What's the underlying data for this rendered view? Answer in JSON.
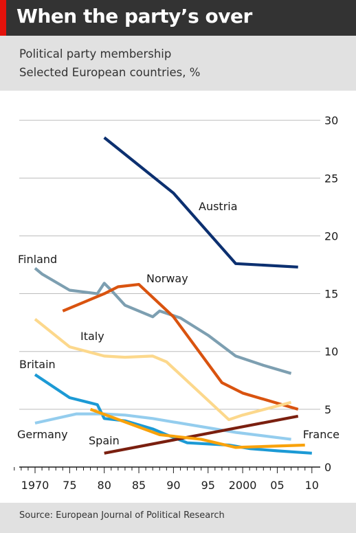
{
  "header": {
    "title": "When the party’s over",
    "subtitle": "Political party membership",
    "subtitle2": "Selected European countries, %"
  },
  "footer": {
    "source": "Source: European Journal of Political Research"
  },
  "colors": {
    "header_bg": "#333333",
    "accent_red": "#e3120b",
    "panel_bg": "#e1e1e1"
  },
  "chart_data": {
    "type": "line",
    "title": "When the party’s over",
    "subtitle": "Political party membership",
    "xlim": [
      1966,
      2011
    ],
    "ylim": [
      0,
      30
    ],
    "y_ticks": [
      0,
      5,
      10,
      15,
      20,
      25,
      30
    ],
    "y_tick_labels": [
      "0",
      "5",
      "10",
      "15",
      "20",
      "25",
      "30"
    ],
    "x_ticks": [
      1970,
      1975,
      1980,
      1985,
      1990,
      1995,
      2000,
      2005,
      2010
    ],
    "x_tick_labels": [
      "1970",
      "75",
      "80",
      "85",
      "90",
      "95",
      "2000",
      "05",
      "10"
    ],
    "y_axis_side": "right",
    "grid": true,
    "series": [
      {
        "name": "Austria",
        "color": "#0c3070",
        "x": [
          1980,
          1990,
          1999,
          2008
        ],
        "y": [
          28.5,
          23.7,
          17.6,
          17.3
        ]
      },
      {
        "name": "Finland",
        "color": "#7d9fb1",
        "x": [
          1970,
          1971,
          1975,
          1979,
          1980,
          1981,
          1983,
          1987,
          1988,
          1991,
          1995,
          1999,
          2003,
          2007
        ],
        "y": [
          17.2,
          16.7,
          15.3,
          15.0,
          15.9,
          15.3,
          14.0,
          13.0,
          13.5,
          12.9,
          11.4,
          9.6,
          8.8,
          8.1
        ]
      },
      {
        "name": "Norway",
        "color": "#d9530f",
        "x": [
          1974,
          1980,
          1982,
          1985,
          1990,
          1997,
          2000,
          2008
        ],
        "y": [
          13.5,
          15.0,
          15.6,
          15.8,
          13.0,
          7.3,
          6.4,
          5.0
        ]
      },
      {
        "name": "Italy",
        "color": "#fcd88c",
        "x": [
          1970,
          1975,
          1980,
          1983,
          1987,
          1989,
          1998,
          2000,
          2007
        ],
        "y": [
          12.8,
          10.4,
          9.6,
          9.5,
          9.6,
          9.1,
          4.1,
          4.5,
          5.6
        ]
      },
      {
        "name": "Britain",
        "color": "#1c9ad5",
        "x": [
          1970,
          1975,
          1979,
          1980,
          1983,
          1987,
          1989,
          1992,
          1998,
          2001,
          2005,
          2010
        ],
        "y": [
          8.0,
          6.0,
          5.4,
          4.2,
          4.0,
          3.3,
          2.8,
          2.1,
          1.9,
          1.6,
          1.4,
          1.2
        ]
      },
      {
        "name": "Germany",
        "color": "#94cdee",
        "x": [
          1970,
          1976,
          1980,
          1983,
          1987,
          1990,
          1999,
          2007
        ],
        "y": [
          3.8,
          4.6,
          4.6,
          4.5,
          4.2,
          3.9,
          3.0,
          2.4
        ]
      },
      {
        "name": "Spain",
        "color": "#7a1f0f",
        "x": [
          1980,
          2008
        ],
        "y": [
          1.2,
          4.4
        ]
      },
      {
        "name": "France",
        "color": "#f9a20b",
        "x": [
          1978,
          1988,
          1994,
          1999,
          2009
        ],
        "y": [
          5.0,
          2.8,
          2.4,
          1.7,
          1.9
        ]
      }
    ]
  }
}
